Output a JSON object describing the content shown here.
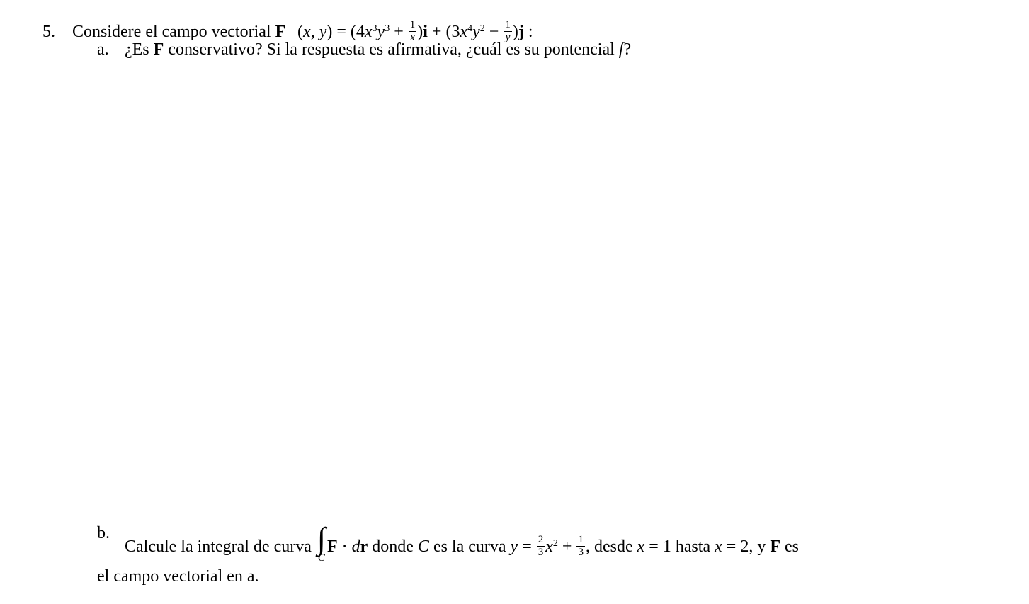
{
  "problem_number": "5.",
  "intro_prefix": "Considere el campo vectorial ",
  "F_label": "F",
  "args_open": "(",
  "var_x": "x",
  "var_y": "y",
  "args_sep": ", ",
  "args_close": ") = (",
  "term1_coef": "4",
  "term1_x_pow": "3",
  "term1_y_pow": "3",
  "plus": " + ",
  "frac1_num": "1",
  "frac1_den": "x",
  "close_paren": ")",
  "i_label": "i",
  "plus_open": " + (",
  "term2_coef": "3",
  "term2_x_pow": "4",
  "term2_y_pow": "2",
  "minus": " − ",
  "frac2_num": "1",
  "frac2_den": "y",
  "j_label": "j",
  "colon": " :",
  "part_a_letter": "a.",
  "part_a_q1": "¿Es ",
  "part_a_mid": " conservativo? Si la respuesta es afirmativa, ¿cuál es su pontencial ",
  "f_label": "f",
  "qmark": "?",
  "part_b_letter": "b.",
  "part_b_prefix": "Calcule la integral de curva ",
  "dot": " · ",
  "d_label": "d",
  "r_label": "r",
  "donde": " donde ",
  "C_label": "C",
  "es_la_curva": " es la curva ",
  "eq": " = ",
  "frac3_num": "2",
  "frac3_den": "3",
  "x_sq_pow": "2",
  "frac4_num": "1",
  "frac4_den": "3",
  "desde": ", desde ",
  "one": "1",
  "hasta": " hasta ",
  "two": "2",
  "y_F_es": ", y ",
  "es": " es",
  "part_b_cont": "el campo vectorial en a.",
  "int_lower": "C"
}
